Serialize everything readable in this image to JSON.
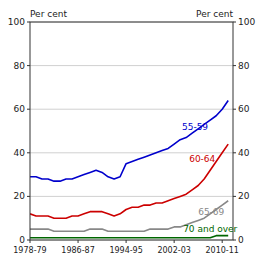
{
  "chart_data": {
    "type": "line",
    "ylabel": "Per cent",
    "y2label": "Per cent",
    "x": [
      1978.5,
      1979.5,
      1980.5,
      1981.5,
      1982.5,
      1983.5,
      1984.5,
      1985.5,
      1986.5,
      1987.5,
      1988.5,
      1989.5,
      1990.5,
      1991.5,
      1992.5,
      1993.5,
      1994.5,
      1995.5,
      1996.5,
      1997.5,
      1998.5,
      1999.5,
      2000.5,
      2001.5,
      2002.5,
      2003.5,
      2004.5,
      2005.5,
      2006.5,
      2007.5,
      2008.5,
      2009.5,
      2010.5,
      2011.5
    ],
    "series": [
      {
        "color": "#0000cc",
        "values": [
          29,
          29,
          28,
          28,
          27,
          27,
          28,
          28,
          29,
          30,
          31,
          32,
          31,
          29,
          28,
          29,
          35,
          36,
          37,
          38,
          39,
          40,
          41,
          42,
          44,
          46,
          47,
          49,
          51,
          53,
          55,
          57,
          60,
          64
        ]
      },
      {
        "color": "#cc0000",
        "values": [
          12,
          11,
          11,
          11,
          10,
          10,
          10,
          11,
          11,
          12,
          13,
          13,
          13,
          12,
          11,
          12,
          14,
          15,
          15,
          16,
          16,
          17,
          17,
          18,
          19,
          20,
          21,
          23,
          25,
          28,
          32,
          36,
          40,
          44
        ]
      },
      {
        "color": "#888888",
        "values": [
          5,
          5,
          5,
          5,
          4,
          4,
          4,
          4,
          4,
          4,
          5,
          5,
          5,
          4,
          4,
          4,
          4,
          4,
          4,
          4,
          5,
          5,
          5,
          5,
          6,
          6,
          7,
          8,
          9,
          10,
          12,
          14,
          16,
          18
        ]
      },
      {
        "color": "#006600",
        "values": [
          1,
          1,
          1,
          1,
          1,
          1,
          1,
          1,
          1,
          1,
          1,
          1,
          1,
          1,
          1,
          1,
          1,
          1,
          1,
          1,
          1,
          1,
          1,
          1,
          1,
          1,
          1,
          1,
          1,
          1,
          1,
          2,
          2,
          2
        ]
      }
    ],
    "annotations": [
      {
        "text": "55-59",
        "x": 2003.8,
        "y": 52,
        "color": "#0000cc"
      },
      {
        "text": "60-64",
        "x": 2005.0,
        "y": 37,
        "color": "#cc0000"
      },
      {
        "text": "65-69",
        "x": 2006.5,
        "y": 13,
        "color": "#888888"
      },
      {
        "text": "70 and over",
        "x": 2004.0,
        "y": 5.0,
        "color": "#006600"
      }
    ],
    "xlim": [
      1978.5,
      2012.3
    ],
    "xticks": [
      {
        "value": 1978.5,
        "label": "1978-79"
      },
      {
        "value": 1986.5,
        "label": "1986-87"
      },
      {
        "value": 1994.5,
        "label": "1994-95"
      },
      {
        "value": 2002.5,
        "label": "2002-03"
      },
      {
        "value": 2010.5,
        "label": "2010-11"
      }
    ],
    "ylim": [
      0,
      100
    ],
    "yticks": [
      0,
      20,
      40,
      60,
      80,
      100
    ],
    "y2lim": [
      0,
      100
    ],
    "y2ticks": [
      0,
      20,
      40,
      60,
      80,
      100
    ],
    "grid": true
  }
}
